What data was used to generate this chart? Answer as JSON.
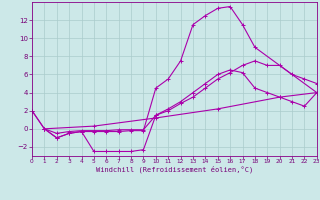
{
  "xlabel": "Windchill (Refroidissement éolien,°C)",
  "bg_color": "#cce8e8",
  "grid_color": "#aacccc",
  "line_color": "#aa00aa",
  "xlim": [
    0,
    23
  ],
  "ylim": [
    -3,
    14
  ],
  "xticks": [
    0,
    1,
    2,
    3,
    4,
    5,
    6,
    7,
    8,
    9,
    10,
    11,
    12,
    13,
    14,
    15,
    16,
    17,
    18,
    19,
    20,
    21,
    22,
    23
  ],
  "yticks": [
    -2,
    0,
    2,
    4,
    6,
    8,
    10,
    12
  ],
  "lines": [
    {
      "x": [
        0,
        1,
        2,
        3,
        4,
        5,
        6,
        7,
        8,
        9,
        10,
        11,
        12,
        13,
        14,
        15,
        16,
        17,
        18,
        23
      ],
      "y": [
        2.0,
        0.0,
        -1.0,
        -0.5,
        -0.3,
        -0.3,
        -0.3,
        -0.3,
        -0.2,
        -0.2,
        4.5,
        5.5,
        7.5,
        11.5,
        12.5,
        13.3,
        13.5,
        11.5,
        9.0,
        4.0
      ]
    },
    {
      "x": [
        1,
        2,
        3,
        4,
        5,
        6,
        7,
        8,
        9,
        10,
        11,
        12,
        13,
        14,
        15,
        16,
        17,
        18,
        19,
        20,
        21,
        22,
        23
      ],
      "y": [
        0.0,
        -0.5,
        -0.3,
        -0.2,
        -0.2,
        -0.2,
        -0.1,
        -0.1,
        -0.1,
        1.5,
        2.0,
        2.8,
        3.5,
        4.5,
        5.5,
        6.2,
        7.0,
        7.5,
        7.0,
        7.0,
        6.0,
        5.5,
        5.0
      ]
    },
    {
      "x": [
        1,
        5,
        10,
        15,
        20,
        23
      ],
      "y": [
        0.0,
        0.3,
        1.2,
        2.2,
        3.5,
        4.0
      ]
    },
    {
      "x": [
        0,
        1,
        2,
        3,
        4,
        5,
        6,
        7,
        8,
        9,
        10,
        11,
        12,
        13,
        14,
        15,
        16,
        17,
        18,
        19,
        20,
        21,
        22,
        23
      ],
      "y": [
        2.0,
        0.0,
        -1.0,
        -0.5,
        -0.3,
        -2.5,
        -2.5,
        -2.5,
        -2.5,
        -2.3,
        1.5,
        2.2,
        3.0,
        4.0,
        5.0,
        6.0,
        6.5,
        6.2,
        4.5,
        4.0,
        3.5,
        3.0,
        2.5,
        4.0
      ]
    }
  ]
}
